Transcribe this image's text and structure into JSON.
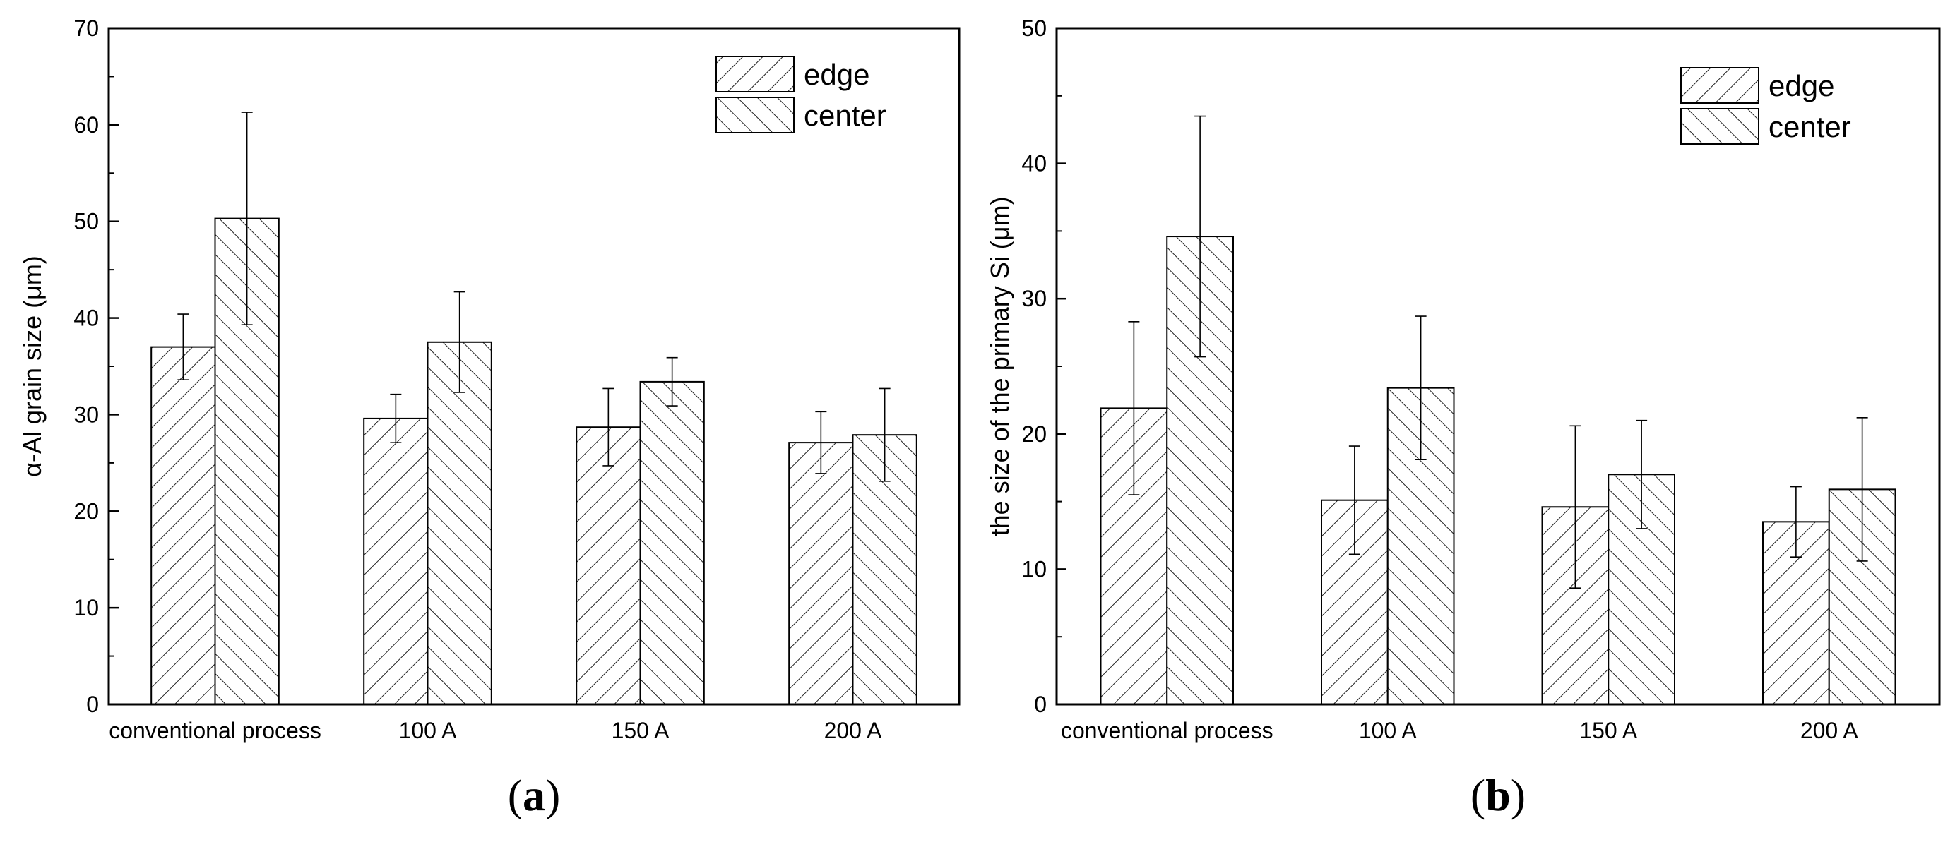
{
  "chart_data": [
    {
      "type": "bar",
      "panel_label": "(a)",
      "panel_letter": "a",
      "categories": [
        "conventional process",
        "100 A",
        "150 A",
        "200 A"
      ],
      "series": [
        {
          "name": "edge",
          "values": [
            37.0,
            29.6,
            28.7,
            27.1
          ],
          "errors": [
            3.4,
            2.5,
            4.0,
            3.2
          ]
        },
        {
          "name": "center",
          "values": [
            50.3,
            37.5,
            33.4,
            27.9
          ],
          "errors": [
            11.0,
            5.2,
            2.5,
            4.8
          ]
        }
      ],
      "title": "",
      "xlabel": "",
      "ylabel": "α-Al grain size (μm)",
      "ylim": [
        0,
        70
      ],
      "yticks": [
        0,
        10,
        20,
        30,
        40,
        50,
        60,
        70
      ],
      "legend_position": "top-right",
      "grid": false
    },
    {
      "type": "bar",
      "panel_label": "(b)",
      "panel_letter": "b",
      "categories": [
        "conventional process",
        "100 A",
        "150 A",
        "200 A"
      ],
      "series": [
        {
          "name": "edge",
          "values": [
            21.9,
            15.1,
            14.6,
            13.5
          ],
          "errors": [
            6.4,
            4.0,
            6.0,
            2.6
          ]
        },
        {
          "name": "center",
          "values": [
            34.6,
            23.4,
            17.0,
            15.9
          ],
          "errors": [
            8.9,
            5.3,
            4.0,
            5.3
          ]
        }
      ],
      "title": "",
      "xlabel": "",
      "ylabel": "the size of the primary Si (μm)",
      "ylim": [
        0,
        50
      ],
      "yticks": [
        0,
        10,
        20,
        30,
        40,
        50
      ],
      "legend_position": "top-right",
      "grid": false
    }
  ]
}
